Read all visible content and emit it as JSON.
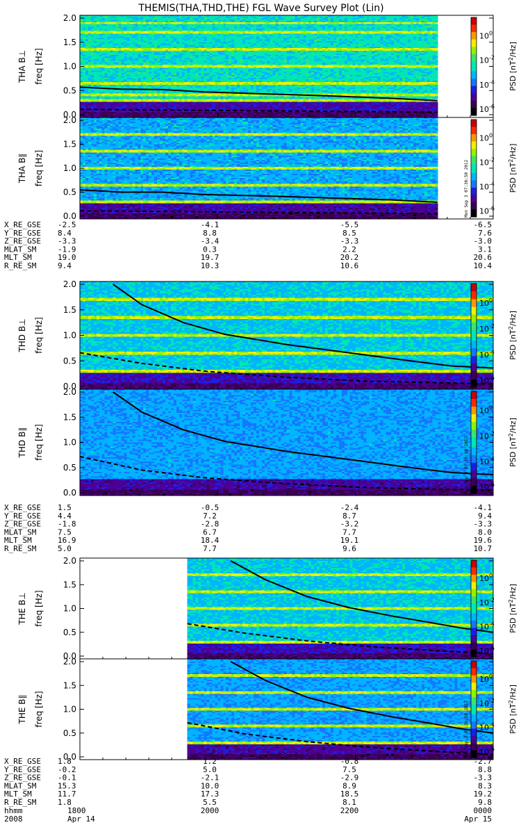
{
  "title": "THEMIS(THA,THD,THE) FGL Wave Survey Plot (Lin)",
  "colors": {
    "background": "#ffffff",
    "curve": "#000000",
    "colormap": [
      "#000000",
      "#3a0050",
      "#4b0096",
      "#1e1ee0",
      "#1478ff",
      "#00b4ff",
      "#00e6b4",
      "#3ce664",
      "#96f000",
      "#f0f000",
      "#ff9600",
      "#ff2800",
      "#c80000"
    ]
  },
  "chart_data": {
    "type": "heatmap",
    "time_axis": {
      "hhmm_label": "hhmm",
      "year_label": "2008",
      "tick_hhmm": [
        "1800",
        "2000",
        "2200",
        "0000"
      ],
      "date_labels": [
        "Apr 14",
        "",
        "",
        "Apr 15"
      ]
    },
    "colorbar": {
      "label": "PSD [nT²/Hz]",
      "label_pre": "PSD [nT",
      "label_sup": "2",
      "label_post": "/Hz]",
      "ticks": [
        "10",
        "10",
        "10",
        "10"
      ],
      "tick_exponents": [
        "0",
        "-2",
        "-4",
        "-6"
      ],
      "range_log10": [
        -6.5,
        1.5
      ]
    },
    "stamp": "Mon Sep  3 07:36:50 2012",
    "panels": [
      {
        "id": "tha-bperp",
        "ylabel": "THA B⊥",
        "yunit": "freq [Hz]",
        "yticks": [
          "0.0",
          "0.5",
          "1.0",
          "1.5",
          "2.0"
        ],
        "ylim": [
          0,
          2
        ],
        "data_start": 0,
        "data_end": 0.865,
        "base": -2.6,
        "noise": 0.45,
        "low_band": -4.8,
        "bright_lines": [
          0.33,
          0.45,
          0.67,
          1.0,
          1.33,
          1.67,
          1.85
        ],
        "solid_curve": [
          [
            0,
            0.57
          ],
          [
            0.1,
            0.53
          ],
          [
            0.2,
            0.52
          ],
          [
            0.3,
            0.47
          ],
          [
            0.45,
            0.43
          ],
          [
            0.6,
            0.39
          ],
          [
            0.75,
            0.34
          ],
          [
            0.865,
            0.29
          ]
        ],
        "dashed_curve": [
          [
            0,
            0.11
          ],
          [
            0.3,
            0.09
          ],
          [
            0.6,
            0.07
          ],
          [
            0.865,
            0.05
          ]
        ]
      },
      {
        "id": "tha-bpar",
        "ylabel": "THA B∥",
        "yunit": "freq [Hz]",
        "yticks": [
          "0.0",
          "0.5",
          "1.0",
          "1.5",
          "2.0"
        ],
        "ylim": [
          0,
          2
        ],
        "data_start": 0,
        "data_end": 0.865,
        "base": -3.2,
        "noise": 0.5,
        "low_band": -4.9,
        "bright_lines": [
          0.33,
          0.67,
          1.0,
          1.33,
          1.67
        ],
        "solid_curve": [
          [
            0,
            0.55
          ],
          [
            0.1,
            0.5
          ],
          [
            0.2,
            0.5
          ],
          [
            0.3,
            0.45
          ],
          [
            0.45,
            0.42
          ],
          [
            0.6,
            0.38
          ],
          [
            0.75,
            0.34
          ],
          [
            0.865,
            0.29
          ]
        ],
        "dashed_curve": [
          [
            0,
            0.11
          ],
          [
            0.3,
            0.09
          ],
          [
            0.6,
            0.07
          ],
          [
            0.865,
            0.05
          ]
        ]
      },
      {
        "id": "thd-bperp",
        "ylabel": "THD B⊥",
        "yunit": "freq [Hz]",
        "yticks": [
          "0.0",
          "0.5",
          "1.0",
          "1.5",
          "2.0"
        ],
        "ylim": [
          0,
          2
        ],
        "data_start": 0,
        "data_end": 1,
        "base": -2.9,
        "noise": 0.45,
        "low_band": -4.7,
        "bright_lines": [
          0.33,
          0.67,
          1.0,
          1.33,
          1.67
        ],
        "solid_curve": [
          [
            0.08,
            2.0
          ],
          [
            0.15,
            1.6
          ],
          [
            0.25,
            1.25
          ],
          [
            0.35,
            1.02
          ],
          [
            0.5,
            0.82
          ],
          [
            0.65,
            0.66
          ],
          [
            0.8,
            0.5
          ],
          [
            0.9,
            0.4
          ],
          [
            1,
            0.36
          ]
        ],
        "dashed_curve": [
          [
            0,
            0.66
          ],
          [
            0.15,
            0.45
          ],
          [
            0.3,
            0.3
          ],
          [
            0.5,
            0.18
          ],
          [
            0.7,
            0.1
          ],
          [
            1,
            0.05
          ]
        ]
      },
      {
        "id": "thd-bpar",
        "ylabel": "THD B∥",
        "yunit": "freq [Hz]",
        "yticks": [
          "0.0",
          "0.5",
          "1.0",
          "1.5",
          "2.0"
        ],
        "ylim": [
          0,
          2
        ],
        "data_start": 0,
        "data_end": 1,
        "base": -3.3,
        "noise": 0.5,
        "low_band": -4.9,
        "bright_lines": [],
        "solid_curve": [
          [
            0.08,
            2.0
          ],
          [
            0.15,
            1.6
          ],
          [
            0.25,
            1.25
          ],
          [
            0.35,
            1.02
          ],
          [
            0.5,
            0.82
          ],
          [
            0.65,
            0.66
          ],
          [
            0.8,
            0.5
          ],
          [
            0.9,
            0.4
          ],
          [
            1,
            0.36
          ]
        ],
        "dashed_curve": [
          [
            0,
            0.72
          ],
          [
            0.15,
            0.45
          ],
          [
            0.3,
            0.3
          ],
          [
            0.5,
            0.18
          ],
          [
            0.7,
            0.1
          ],
          [
            1,
            0.05
          ]
        ]
      },
      {
        "id": "the-bperp",
        "ylabel": "THE B⊥",
        "yunit": "freq [Hz]",
        "yticks": [
          "0.0",
          "0.5",
          "1.0",
          "1.5",
          "2.0"
        ],
        "ylim": [
          0,
          2
        ],
        "data_start": 0.26,
        "data_end": 1,
        "base": -2.9,
        "noise": 0.45,
        "low_band": -4.7,
        "bright_lines": [
          0.33,
          0.67,
          1.0,
          1.33,
          1.67
        ],
        "solid_curve": [
          [
            0.365,
            2.0
          ],
          [
            0.45,
            1.6
          ],
          [
            0.55,
            1.25
          ],
          [
            0.65,
            1.02
          ],
          [
            0.75,
            0.85
          ],
          [
            0.85,
            0.7
          ],
          [
            0.93,
            0.58
          ],
          [
            1,
            0.5
          ]
        ],
        "dashed_curve": [
          [
            0.26,
            0.68
          ],
          [
            0.4,
            0.48
          ],
          [
            0.55,
            0.32
          ],
          [
            0.7,
            0.2
          ],
          [
            0.85,
            0.12
          ],
          [
            1,
            0.05
          ]
        ]
      },
      {
        "id": "the-bpar",
        "ylabel": "THE B∥",
        "yunit": "freq [Hz]",
        "yticks": [
          "0.0",
          "0.5",
          "1.0",
          "1.5",
          "2.0"
        ],
        "ylim": [
          0,
          2
        ],
        "data_start": 0.26,
        "data_end": 1,
        "base": -3.3,
        "noise": 0.5,
        "low_band": -4.9,
        "bright_lines": [
          0.33,
          0.67,
          1.0,
          1.33,
          1.67
        ],
        "solid_curve": [
          [
            0.365,
            2.0
          ],
          [
            0.45,
            1.6
          ],
          [
            0.55,
            1.25
          ],
          [
            0.65,
            1.02
          ],
          [
            0.75,
            0.85
          ],
          [
            0.85,
            0.7
          ],
          [
            0.93,
            0.58
          ],
          [
            1,
            0.5
          ]
        ],
        "dashed_curve": [
          [
            0.26,
            0.72
          ],
          [
            0.4,
            0.48
          ],
          [
            0.55,
            0.32
          ],
          [
            0.7,
            0.2
          ],
          [
            0.85,
            0.12
          ],
          [
            1,
            0.05
          ]
        ]
      }
    ],
    "ephemeris": [
      {
        "probe": "THA",
        "rows": [
          {
            "label": "X_RE_GSE",
            "values": [
              "-2.5",
              "-4.1",
              "-5.5",
              "-6.5"
            ]
          },
          {
            "label": "Y_RE_GSE",
            "values": [
              "8.4",
              "8.8",
              "8.5",
              "7.6"
            ]
          },
          {
            "label": "Z_RE_GSE",
            "values": [
              "-3.3",
              "-3.4",
              "-3.3",
              "-3.0"
            ]
          },
          {
            "label": "MLAT_SM",
            "values": [
              "-1.9",
              "0.3",
              "2.2",
              "3.1"
            ]
          },
          {
            "label": "MLT_SM",
            "values": [
              "19.0",
              "19.7",
              "20.2",
              "20.6"
            ]
          },
          {
            "label": "R_RE_SM",
            "values": [
              "9.4",
              "10.3",
              "10.6",
              "10.4"
            ]
          }
        ]
      },
      {
        "probe": "THD",
        "rows": [
          {
            "label": "X_RE_GSE",
            "values": [
              "1.5",
              "-0.5",
              "-2.4",
              "-4.1"
            ]
          },
          {
            "label": "Y_RE_GSE",
            "values": [
              "4.4",
              "7.2",
              "8.7",
              "9.4"
            ]
          },
          {
            "label": "Z_RE_GSE",
            "values": [
              "-1.8",
              "-2.8",
              "-3.2",
              "-3.3"
            ]
          },
          {
            "label": "MLAT_SM",
            "values": [
              "7.5",
              "6.7",
              "7.7",
              "8.0"
            ]
          },
          {
            "label": "MLT_SM",
            "values": [
              "16.9",
              "18.4",
              "19.1",
              "19.6"
            ]
          },
          {
            "label": "R_RE_SM",
            "values": [
              "5.0",
              "7.7",
              "9.6",
              "10.7"
            ]
          }
        ]
      },
      {
        "probe": "THE",
        "rows": [
          {
            "label": "X_RE_GSE",
            "values": [
              "1.8",
              "1.2",
              "-0.8",
              "-2.7"
            ]
          },
          {
            "label": "Y_RE_GSE",
            "values": [
              "-0.2",
              "5.0",
              "7.5",
              "8.8"
            ]
          },
          {
            "label": "Z_RE_GSE",
            "values": [
              "-0.1",
              "-2.1",
              "-2.9",
              "-3.3"
            ]
          },
          {
            "label": "MLAT_SM",
            "values": [
              "15.3",
              "10.0",
              "8.9",
              "8.3"
            ]
          },
          {
            "label": "MLT_SM",
            "values": [
              "11.7",
              "17.3",
              "18.5",
              "19.2"
            ]
          },
          {
            "label": "R_RE_SM",
            "values": [
              "1.8",
              "5.5",
              "8.1",
              "9.8"
            ]
          }
        ]
      }
    ]
  }
}
